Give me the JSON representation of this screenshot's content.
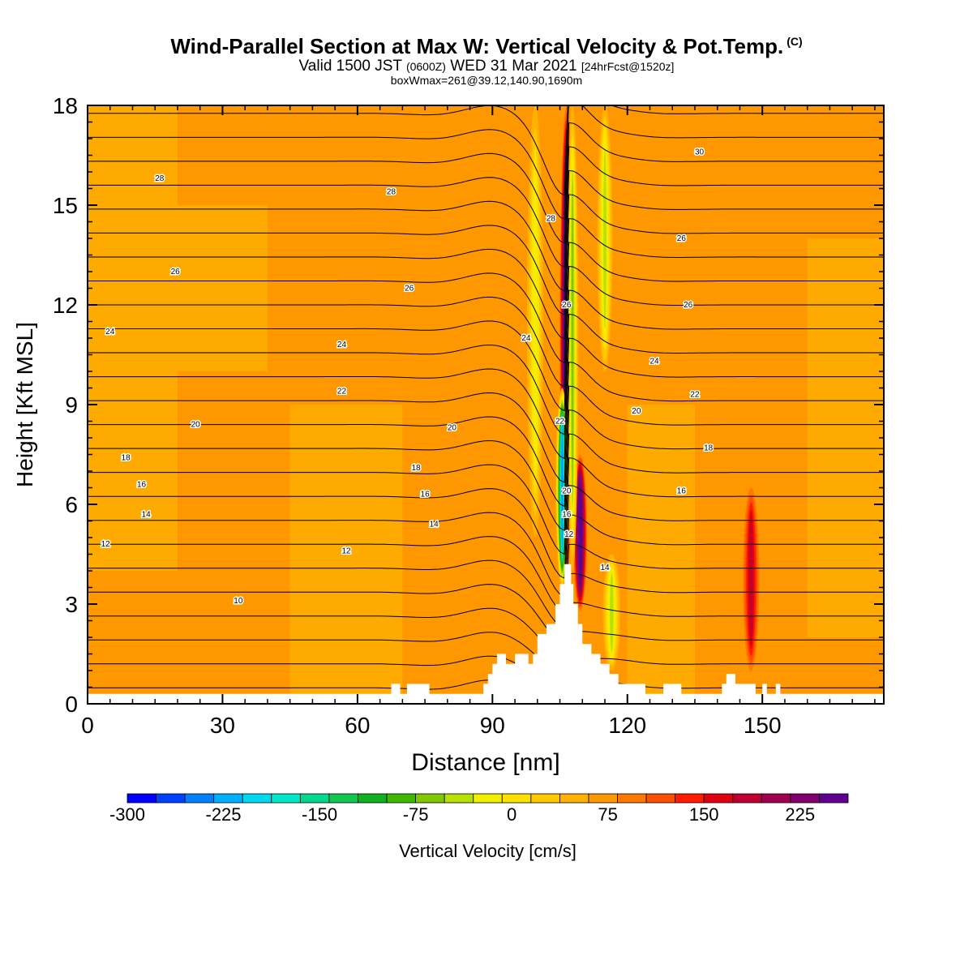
{
  "header": {
    "title": "Wind-Parallel Section at Max W: Vertical Velocity & Pot.Temp.",
    "title_mark": "(C)",
    "valid_prefix": "Valid 1500 JST",
    "valid_zulu": "(0600Z)",
    "valid_date": "WED 31 Mar 2021",
    "forecast": "[24hrFcst@1520z]",
    "box_info": "boxWmax=261@39.12,140.90,1690m"
  },
  "chart_data": {
    "type": "heatmap",
    "xlabel": "Distance [nm]",
    "ylabel": "Height [Kft MSL]",
    "xlim": [
      0,
      177
    ],
    "ylim": [
      0,
      18
    ],
    "x_ticks": [
      0,
      30,
      60,
      90,
      120,
      150
    ],
    "y_ticks": [
      0,
      3,
      6,
      9,
      12,
      15,
      18
    ],
    "colorbar": {
      "label": "Vertical Velocity [cm/s]",
      "ticks": [
        -300,
        -225,
        -150,
        -75,
        0,
        75,
        150,
        225
      ],
      "range": [
        -300,
        262.5
      ],
      "step": 18.75,
      "colors": [
        "#0000ff",
        "#0040ff",
        "#0080ff",
        "#00b0ff",
        "#00d8f0",
        "#00e8c8",
        "#00d890",
        "#10c850",
        "#10b020",
        "#40b800",
        "#80c800",
        "#b8e000",
        "#f0f000",
        "#ffe000",
        "#ffc800",
        "#ffb000",
        "#ff9800",
        "#ff7800",
        "#ff5000",
        "#ff1c00",
        "#e00010",
        "#c00030",
        "#a00050",
        "#800070",
        "#600090"
      ]
    },
    "terrain_profile": {
      "distance": [
        0,
        67,
        67.5,
        69,
        69.5,
        70.5,
        71,
        74,
        76,
        86,
        88,
        89,
        90,
        91,
        92,
        93,
        94,
        95,
        97,
        98,
        99,
        100,
        102,
        104,
        105,
        106,
        107,
        107.5,
        108,
        109,
        110,
        112,
        114,
        116,
        118,
        120,
        124,
        126,
        128,
        130,
        132,
        134,
        141,
        142,
        143,
        144,
        148,
        148.5,
        150,
        151,
        152,
        153,
        154,
        177
      ],
      "height": [
        0.3,
        0.3,
        0.6,
        0.6,
        0.3,
        0.3,
        0.6,
        0.6,
        0.3,
        0.3,
        0.6,
        0.9,
        1.2,
        1.5,
        1.5,
        1.2,
        1.2,
        1.5,
        1.5,
        1.2,
        1.5,
        2.1,
        2.4,
        3.0,
        3.6,
        4.2,
        4.2,
        3.6,
        3.0,
        2.4,
        1.8,
        1.5,
        1.2,
        0.9,
        0.6,
        0.6,
        0.3,
        0.3,
        0.6,
        0.6,
        0.3,
        0.3,
        0.6,
        0.9,
        0.9,
        0.6,
        0.6,
        0.3,
        0.6,
        0.3,
        0.3,
        0.6,
        0.3,
        0.3
      ]
    },
    "contours": {
      "field": "Potential temperature",
      "interval": 1,
      "range": [
        6,
        31
      ],
      "labels": [
        {
          "text": "28",
          "x": 16,
          "y": 15.8
        },
        {
          "text": "28",
          "x": 67.5,
          "y": 15.4
        },
        {
          "text": "28",
          "x": 103,
          "y": 14.6
        },
        {
          "text": "30",
          "x": 136,
          "y": 16.6
        },
        {
          "text": "26",
          "x": 19.5,
          "y": 13.0
        },
        {
          "text": "26",
          "x": 71.5,
          "y": 12.5
        },
        {
          "text": "26",
          "x": 132,
          "y": 14.0
        },
        {
          "text": "26",
          "x": 133.5,
          "y": 12.0
        },
        {
          "text": "26",
          "x": 106.5,
          "y": 12.0
        },
        {
          "text": "24",
          "x": 5,
          "y": 11.2
        },
        {
          "text": "24",
          "x": 56.5,
          "y": 10.8
        },
        {
          "text": "24",
          "x": 97.5,
          "y": 11.0
        },
        {
          "text": "24",
          "x": 126,
          "y": 10.3
        },
        {
          "text": "22",
          "x": 56.5,
          "y": 9.4
        },
        {
          "text": "22",
          "x": 105,
          "y": 8.5
        },
        {
          "text": "22",
          "x": 135,
          "y": 9.3
        },
        {
          "text": "20",
          "x": 24,
          "y": 8.4
        },
        {
          "text": "20",
          "x": 81,
          "y": 8.3
        },
        {
          "text": "20",
          "x": 122,
          "y": 8.8
        },
        {
          "text": "20",
          "x": 106.5,
          "y": 6.4
        },
        {
          "text": "18",
          "x": 8.5,
          "y": 7.4
        },
        {
          "text": "18",
          "x": 73,
          "y": 7.1
        },
        {
          "text": "18",
          "x": 138,
          "y": 7.7
        },
        {
          "text": "16",
          "x": 12,
          "y": 6.6
        },
        {
          "text": "16",
          "x": 75,
          "y": 6.3
        },
        {
          "text": "16",
          "x": 132,
          "y": 6.4
        },
        {
          "text": "16",
          "x": 106.5,
          "y": 5.7
        },
        {
          "text": "14",
          "x": 13,
          "y": 5.7
        },
        {
          "text": "14",
          "x": 77,
          "y": 5.4
        },
        {
          "text": "14",
          "x": 115,
          "y": 4.1
        },
        {
          "text": "12",
          "x": 107,
          "y": 5.1
        },
        {
          "text": "12",
          "x": 4,
          "y": 4.8
        },
        {
          "text": "12",
          "x": 57.5,
          "y": 4.6
        },
        {
          "text": "10",
          "x": 33.5,
          "y": 3.1
        }
      ]
    },
    "velocity_features": [
      {
        "x": 106.5,
        "y0": 4.0,
        "y1": 18,
        "w": 1.2,
        "value": 250
      },
      {
        "x": 109.5,
        "y0": 2.8,
        "y1": 7.5,
        "w": 1.2,
        "value": 200
      },
      {
        "x": 105.5,
        "y0": 3.5,
        "y1": 9.5,
        "w": 1.1,
        "value": -280
      },
      {
        "x": 107.8,
        "y0": 4.0,
        "y1": 18,
        "w": 1.0,
        "value": -130
      },
      {
        "x": 116.5,
        "y0": 1.0,
        "y1": 4.5,
        "w": 1.5,
        "value": -110
      },
      {
        "x": 115,
        "y0": 10,
        "y1": 18,
        "w": 1.3,
        "value": -100
      },
      {
        "x": 99.5,
        "y0": 5,
        "y1": 18,
        "w": 1.4,
        "value": -90
      },
      {
        "x": 147.5,
        "y0": 1.0,
        "y1": 6.5,
        "w": 1.4,
        "value": 100
      }
    ]
  }
}
